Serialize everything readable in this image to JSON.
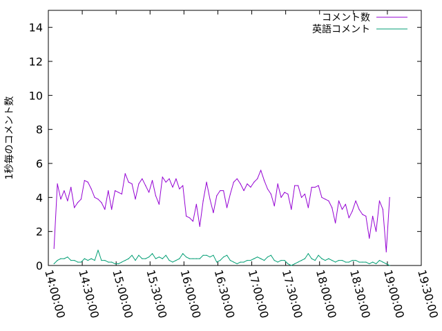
{
  "chart_data": {
    "type": "line",
    "title": "",
    "xlabel": "",
    "ylabel": "1秒毎のコメント数",
    "x_ticks": [
      "14:00:00",
      "14:30:00",
      "15:00:00",
      "15:30:00",
      "16:00:00",
      "16:30:00",
      "17:00:00",
      "17:30:00",
      "18:00:00",
      "18:30:00",
      "19:00:00",
      "19:30:00"
    ],
    "x_range": [
      "14:00:00",
      "19:30:00"
    ],
    "y_ticks": [
      0,
      2,
      4,
      6,
      8,
      10,
      12,
      14
    ],
    "ylim": [
      0,
      15
    ],
    "grid": false,
    "legend_position": "top-right",
    "series": [
      {
        "name": "コメント数",
        "color": "#9400d3",
        "start": "14:05:00",
        "step_minutes": 3,
        "values": [
          1.0,
          4.8,
          3.9,
          4.4,
          3.8,
          4.6,
          3.4,
          3.7,
          3.9,
          5.0,
          4.9,
          4.5,
          4.0,
          3.9,
          3.7,
          3.3,
          4.4,
          3.3,
          4.4,
          4.3,
          4.2,
          5.4,
          4.9,
          4.8,
          3.9,
          4.8,
          5.1,
          4.7,
          4.3,
          5.0,
          4.1,
          3.6,
          5.2,
          4.9,
          5.1,
          4.6,
          5.1,
          4.5,
          4.7,
          2.9,
          2.8,
          2.6,
          3.6,
          2.3,
          3.8,
          4.9,
          3.9,
          3.1,
          4.1,
          4.4,
          4.4,
          3.4,
          4.2,
          4.9,
          5.1,
          4.8,
          4.4,
          4.8,
          4.6,
          4.9,
          5.1,
          5.6,
          5.0,
          4.5,
          4.2,
          3.5,
          4.8,
          4.0,
          4.3,
          4.2,
          3.3,
          4.7,
          4.7,
          4.0,
          4.2,
          3.4,
          4.6,
          4.6,
          4.7,
          4.0,
          3.9,
          3.8,
          3.4,
          2.5,
          3.8,
          3.3,
          3.6,
          2.8,
          3.2,
          3.8,
          3.3,
          3.0,
          2.9,
          1.6,
          2.9,
          2.0,
          3.8,
          3.3,
          0.8,
          4.0
        ]
      },
      {
        "name": "英語コメント",
        "color": "#009e73",
        "start": "14:05:00",
        "step_minutes": 3,
        "values": [
          0.1,
          0.3,
          0.4,
          0.4,
          0.5,
          0.3,
          0.3,
          0.2,
          0.2,
          0.4,
          0.3,
          0.4,
          0.3,
          0.9,
          0.3,
          0.3,
          0.2,
          0.2,
          0.1,
          0.1,
          0.2,
          0.3,
          0.4,
          0.6,
          0.3,
          0.6,
          0.4,
          0.4,
          0.5,
          0.7,
          0.4,
          0.5,
          0.4,
          0.6,
          0.3,
          0.2,
          0.3,
          0.4,
          0.7,
          0.5,
          0.4,
          0.4,
          0.4,
          0.4,
          0.6,
          0.6,
          0.5,
          0.6,
          0.2,
          0.3,
          0.5,
          0.6,
          0.3,
          0.2,
          0.1,
          0.2,
          0.2,
          0.3,
          0.3,
          0.4,
          0.5,
          0.4,
          0.3,
          0.5,
          0.6,
          0.3,
          0.2,
          0.3,
          0.3,
          0.1,
          0.0,
          0.1,
          0.2,
          0.3,
          0.4,
          0.7,
          0.4,
          0.3,
          0.6,
          0.4,
          0.3,
          0.4,
          0.3,
          0.2,
          0.3,
          0.3,
          0.2,
          0.2,
          0.3,
          0.3,
          0.2,
          0.2,
          0.2,
          0.1,
          0.2,
          0.1,
          0.3,
          0.2,
          0.1,
          0.0
        ]
      }
    ]
  }
}
